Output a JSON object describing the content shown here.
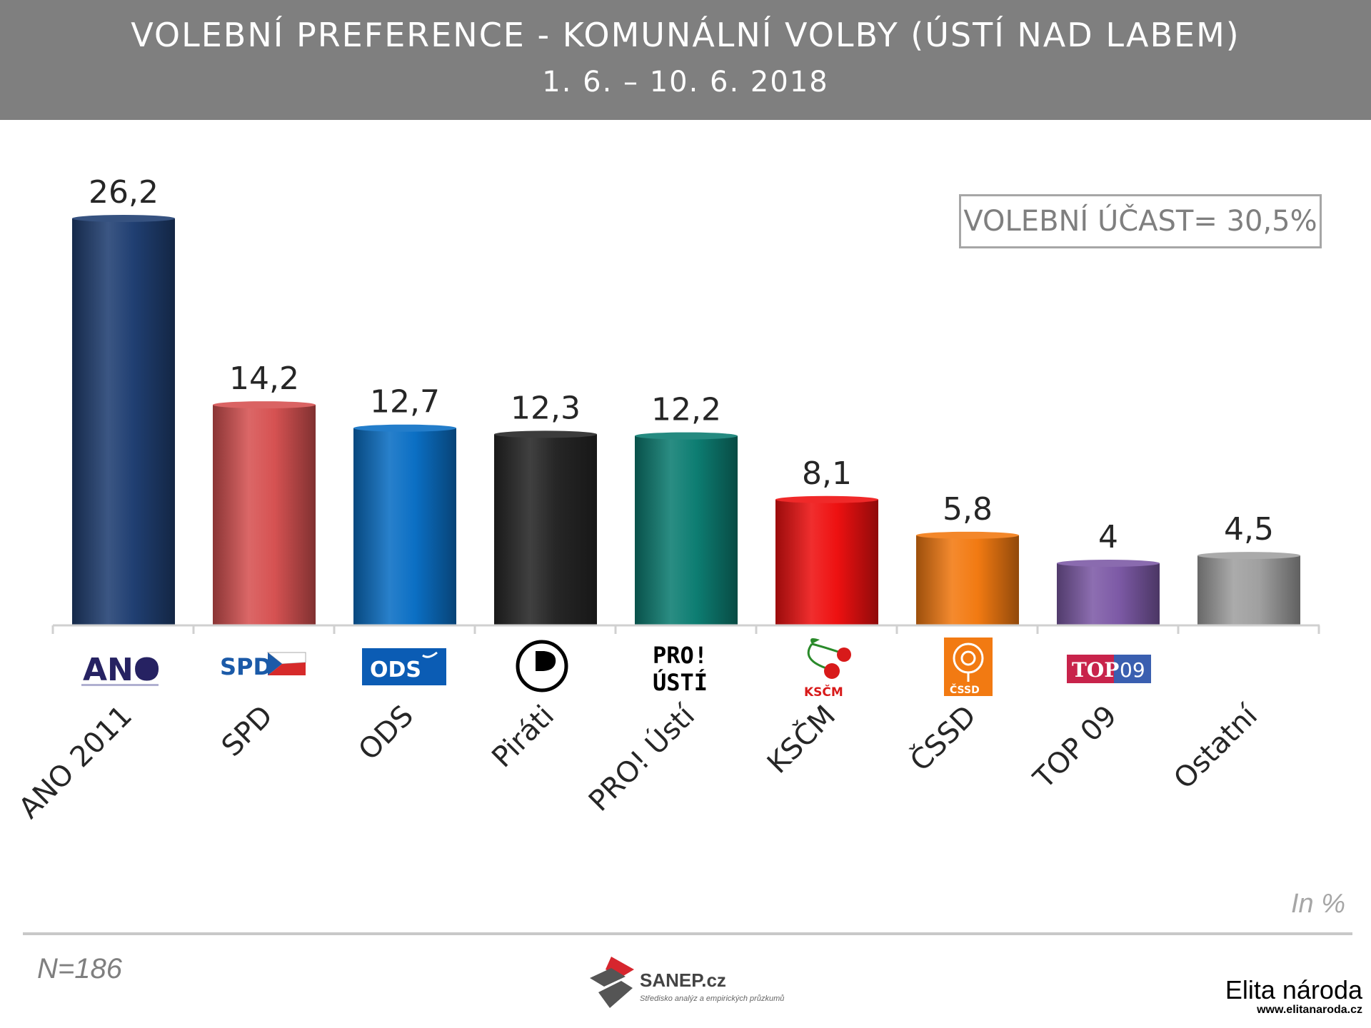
{
  "header": {
    "title": "VOLEBNÍ PREFERENCE - KOMUNÁLNÍ VOLBY (ÚSTÍ NAD LABEM)",
    "subtitle": "1. 6. – 10. 6. 2018"
  },
  "turnout_label": "VOLEBNÍ ÚČAST= 30,5%",
  "unit_label": "In %",
  "sample_size": "N=186",
  "source": {
    "name": "SANEP.cz",
    "tagline": "Středisko analýz a empirických průzkumů"
  },
  "watermark": {
    "text": "Elita národa",
    "url": "www.elitanaroda.cz"
  },
  "logos": {
    "ano": "ANO",
    "spd": "SPD",
    "ods": "ODS",
    "pro_line1": "PRO!",
    "pro_line2": "ÚSTÍ",
    "kscm": "KSČM",
    "cssd": "ČSSD",
    "top_a": "TOP",
    "top_b": "09"
  },
  "chart_data": {
    "type": "bar",
    "categories": [
      "ANO 2011",
      "SPD",
      "ODS",
      "Piráti",
      "PRO! Ústí",
      "KSČM",
      "ČSSD",
      "TOP 09",
      "Ostatní"
    ],
    "values": [
      26.2,
      14.2,
      12.7,
      12.3,
      12.2,
      8.1,
      5.8,
      4,
      4.5
    ],
    "data_labels": [
      "26,2",
      "14,2",
      "12,7",
      "12,3",
      "12,2",
      "8,1",
      "5,8",
      "4",
      "4,5"
    ],
    "colors": [
      "#203f72",
      "#d65252",
      "#0b6fc4",
      "#262626",
      "#0d7d72",
      "#ee1111",
      "#f27a12",
      "#7d5aa6",
      "#a0a0a0"
    ],
    "logo_icons": [
      "ano-logo-icon",
      "spd-logo-icon",
      "ods-logo-icon",
      "pirate-logo-icon",
      "pro-usti-logo-icon",
      "kscm-cherries-icon",
      "cssd-rose-icon",
      "top09-logo-icon",
      ""
    ],
    "title": "VOLEBNÍ PREFERENCE - KOMUNÁLNÍ VOLBY (ÚSTÍ NAD LABEM)",
    "xlabel": "",
    "ylabel": "",
    "ylim": [
      0,
      26.2
    ],
    "grid": false,
    "legend": "none"
  }
}
